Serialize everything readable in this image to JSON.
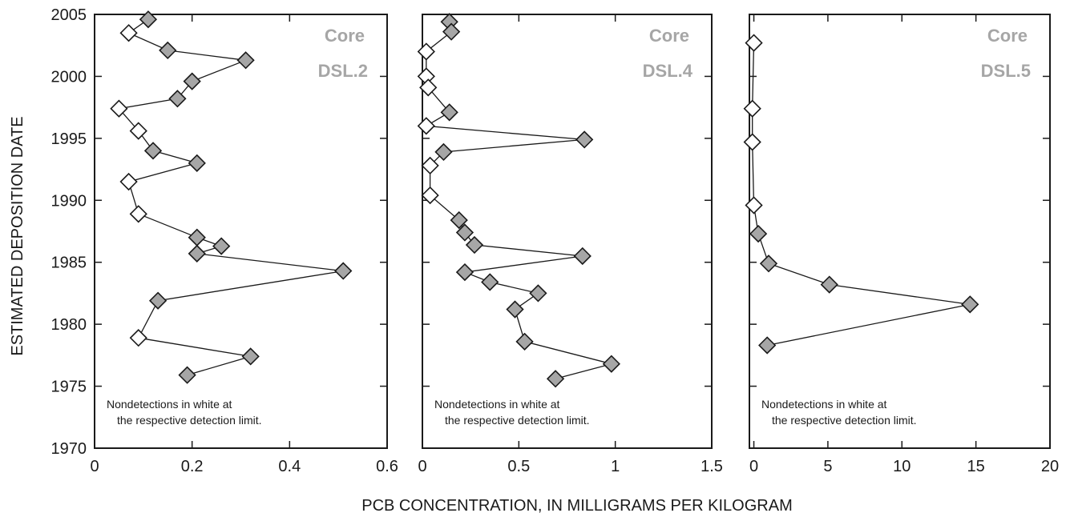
{
  "figure": {
    "ylabel": "ESTIMATED DEPOSITION DATE",
    "xlabel": "PCB CONCENTRATION, IN MILLIGRAMS PER KILOGRAM"
  },
  "chart_data": [
    {
      "type": "scatter",
      "label_line1": "Core",
      "label_line2": "DSL.2",
      "note_line1": "Nondetections in white at",
      "note_line2": "the respective detection limit.",
      "xlim": [
        0,
        0.6
      ],
      "xticks": [
        0,
        0.2,
        0.4,
        0.6
      ],
      "xtick_labels": [
        "0",
        "0.2",
        "0.4",
        "0.6"
      ],
      "ylim": [
        1970,
        2005
      ],
      "yticks": [
        1970,
        1975,
        1980,
        1985,
        1990,
        1995,
        2000,
        2005
      ],
      "ytick_labels": [
        "1970",
        "1975",
        "1980",
        "1985",
        "1990",
        "1995",
        "2000",
        "2005"
      ],
      "connected": true,
      "detected_color": "#a6a6a6",
      "nondetect_color": "#ffffff",
      "points": [
        {
          "x": 0.11,
          "y": 2004.6,
          "detected": true
        },
        {
          "x": 0.07,
          "y": 2003.5,
          "detected": false
        },
        {
          "x": 0.15,
          "y": 2002.1,
          "detected": true
        },
        {
          "x": 0.31,
          "y": 2001.3,
          "detected": true
        },
        {
          "x": 0.2,
          "y": 1999.6,
          "detected": true
        },
        {
          "x": 0.17,
          "y": 1998.2,
          "detected": true
        },
        {
          "x": 0.05,
          "y": 1997.4,
          "detected": false
        },
        {
          "x": 0.09,
          "y": 1995.6,
          "detected": false
        },
        {
          "x": 0.12,
          "y": 1994.0,
          "detected": true
        },
        {
          "x": 0.21,
          "y": 1993.0,
          "detected": true
        },
        {
          "x": 0.07,
          "y": 1991.5,
          "detected": false
        },
        {
          "x": 0.09,
          "y": 1988.9,
          "detected": false
        },
        {
          "x": 0.21,
          "y": 1987.0,
          "detected": true
        },
        {
          "x": 0.26,
          "y": 1986.3,
          "detected": true
        },
        {
          "x": 0.21,
          "y": 1985.7,
          "detected": true
        },
        {
          "x": 0.51,
          "y": 1984.3,
          "detected": true
        },
        {
          "x": 0.13,
          "y": 1981.9,
          "detected": true
        },
        {
          "x": 0.09,
          "y": 1978.9,
          "detected": false
        },
        {
          "x": 0.32,
          "y": 1977.4,
          "detected": true
        },
        {
          "x": 0.19,
          "y": 1975.9,
          "detected": true
        }
      ]
    },
    {
      "type": "scatter",
      "label_line1": "Core",
      "label_line2": "DSL.4",
      "note_line1": "Nondetections in white at",
      "note_line2": "the respective detection limit.",
      "xlim": [
        0,
        1.5
      ],
      "xticks": [
        0,
        0.5,
        1,
        1.5
      ],
      "xtick_labels": [
        "0",
        "0.5",
        "1",
        "1.5"
      ],
      "ylim": [
        1970,
        2005
      ],
      "yticks": [
        1970,
        1975,
        1980,
        1985,
        1990,
        1995,
        2000,
        2005
      ],
      "connected": true,
      "detected_color": "#a6a6a6",
      "nondetect_color": "#ffffff",
      "points": [
        {
          "x": 0.14,
          "y": 2004.4,
          "detected": true
        },
        {
          "x": 0.15,
          "y": 2003.6,
          "detected": true
        },
        {
          "x": 0.02,
          "y": 2002.0,
          "detected": false
        },
        {
          "x": 0.02,
          "y": 2000.0,
          "detected": false
        },
        {
          "x": 0.03,
          "y": 1999.1,
          "detected": false
        },
        {
          "x": 0.14,
          "y": 1997.1,
          "detected": true
        },
        {
          "x": 0.02,
          "y": 1996.0,
          "detected": false
        },
        {
          "x": 0.84,
          "y": 1994.9,
          "detected": true
        },
        {
          "x": 0.11,
          "y": 1993.9,
          "detected": true
        },
        {
          "x": 0.04,
          "y": 1992.8,
          "detected": false
        },
        {
          "x": 0.04,
          "y": 1990.4,
          "detected": false
        },
        {
          "x": 0.19,
          "y": 1988.4,
          "detected": true
        },
        {
          "x": 0.22,
          "y": 1987.4,
          "detected": true
        },
        {
          "x": 0.27,
          "y": 1986.4,
          "detected": true
        },
        {
          "x": 0.83,
          "y": 1985.5,
          "detected": true
        },
        {
          "x": 0.22,
          "y": 1984.2,
          "detected": true
        },
        {
          "x": 0.35,
          "y": 1983.4,
          "detected": true
        },
        {
          "x": 0.6,
          "y": 1982.5,
          "detected": true
        },
        {
          "x": 0.48,
          "y": 1981.2,
          "detected": true
        },
        {
          "x": 0.53,
          "y": 1978.6,
          "detected": true
        },
        {
          "x": 0.98,
          "y": 1976.8,
          "detected": true
        },
        {
          "x": 0.69,
          "y": 1975.6,
          "detected": true
        }
      ]
    },
    {
      "type": "scatter",
      "label_line1": "Core",
      "label_line2": "DSL.5",
      "note_line1": "Nondetections in white at",
      "note_line2": "the respective detection limit.",
      "xlim": [
        -0.3,
        20
      ],
      "xticks": [
        0,
        5,
        10,
        15,
        20
      ],
      "xtick_labels": [
        "0",
        "5",
        "10",
        "15",
        "20"
      ],
      "ylim": [
        1970,
        2005
      ],
      "yticks": [
        1970,
        1975,
        1980,
        1985,
        1990,
        1995,
        2000,
        2005
      ],
      "connected": true,
      "detected_color": "#a6a6a6",
      "nondetect_color": "#ffffff",
      "points": [
        {
          "x": 0.0,
          "y": 2002.7,
          "detected": false
        },
        {
          "x": -0.1,
          "y": 1997.4,
          "detected": false
        },
        {
          "x": -0.1,
          "y": 1994.7,
          "detected": false
        },
        {
          "x": 0.0,
          "y": 1989.6,
          "detected": false
        },
        {
          "x": 0.3,
          "y": 1987.3,
          "detected": true
        },
        {
          "x": 1.0,
          "y": 1984.9,
          "detected": true
        },
        {
          "x": 5.1,
          "y": 1983.2,
          "detected": true
        },
        {
          "x": 14.6,
          "y": 1981.6,
          "detected": true
        },
        {
          "x": 0.9,
          "y": 1978.3,
          "detected": true
        }
      ]
    }
  ]
}
